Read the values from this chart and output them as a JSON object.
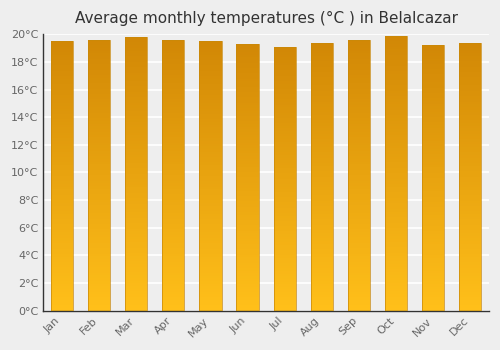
{
  "title": "Average monthly temperatures (°C ) in Belalcazar",
  "months": [
    "Jan",
    "Feb",
    "Mar",
    "Apr",
    "May",
    "Jun",
    "Jul",
    "Aug",
    "Sep",
    "Oct",
    "Nov",
    "Dec"
  ],
  "values": [
    19.5,
    19.6,
    19.8,
    19.6,
    19.5,
    19.3,
    19.1,
    19.4,
    19.6,
    19.9,
    19.2,
    19.4
  ],
  "bar_color_mid": "#F5A800",
  "bar_color_light": "#FFD050",
  "bar_edge_color": "#C8880A",
  "ylim": [
    0,
    20
  ],
  "yticks": [
    0,
    2,
    4,
    6,
    8,
    10,
    12,
    14,
    16,
    18,
    20
  ],
  "ytick_labels": [
    "0°C",
    "2°C",
    "4°C",
    "6°C",
    "8°C",
    "10°C",
    "12°C",
    "14°C",
    "16°C",
    "18°C",
    "20°C"
  ],
  "background_color": "#eeeeee",
  "grid_color": "#ffffff",
  "title_fontsize": 11,
  "tick_fontsize": 8,
  "bar_width": 0.6
}
